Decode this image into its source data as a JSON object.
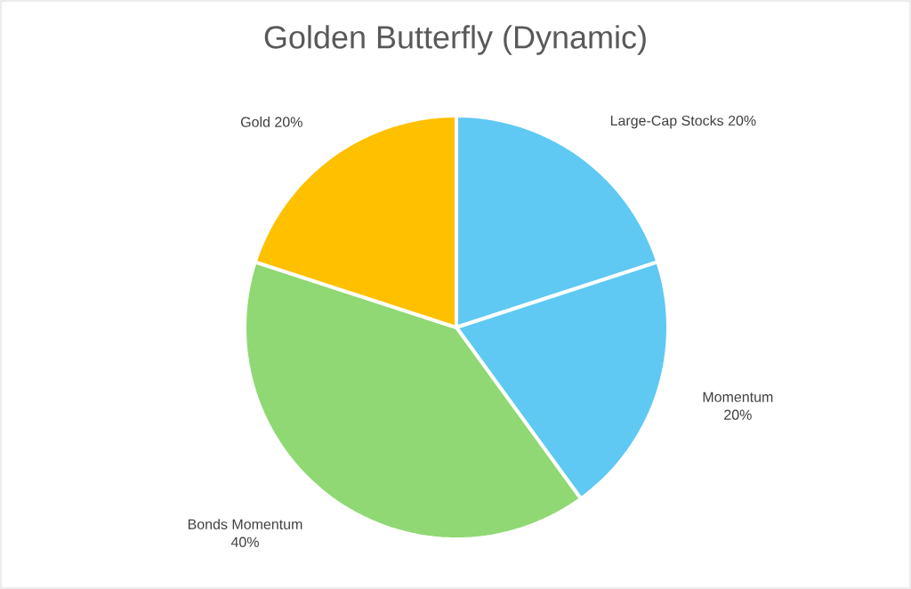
{
  "chart_data": {
    "type": "pie",
    "title": "Golden Butterfly (Dynamic)",
    "categories": [
      "Large-Cap Stocks",
      "Momentum",
      "Bonds Momentum",
      "Gold"
    ],
    "values": [
      20,
      20,
      40,
      20
    ],
    "colors": [
      "#5fc9f3",
      "#5fc9f3",
      "#8fd873",
      "#ffc000"
    ],
    "value_labels": [
      "20%",
      "20%",
      "40%",
      "20%"
    ]
  }
}
